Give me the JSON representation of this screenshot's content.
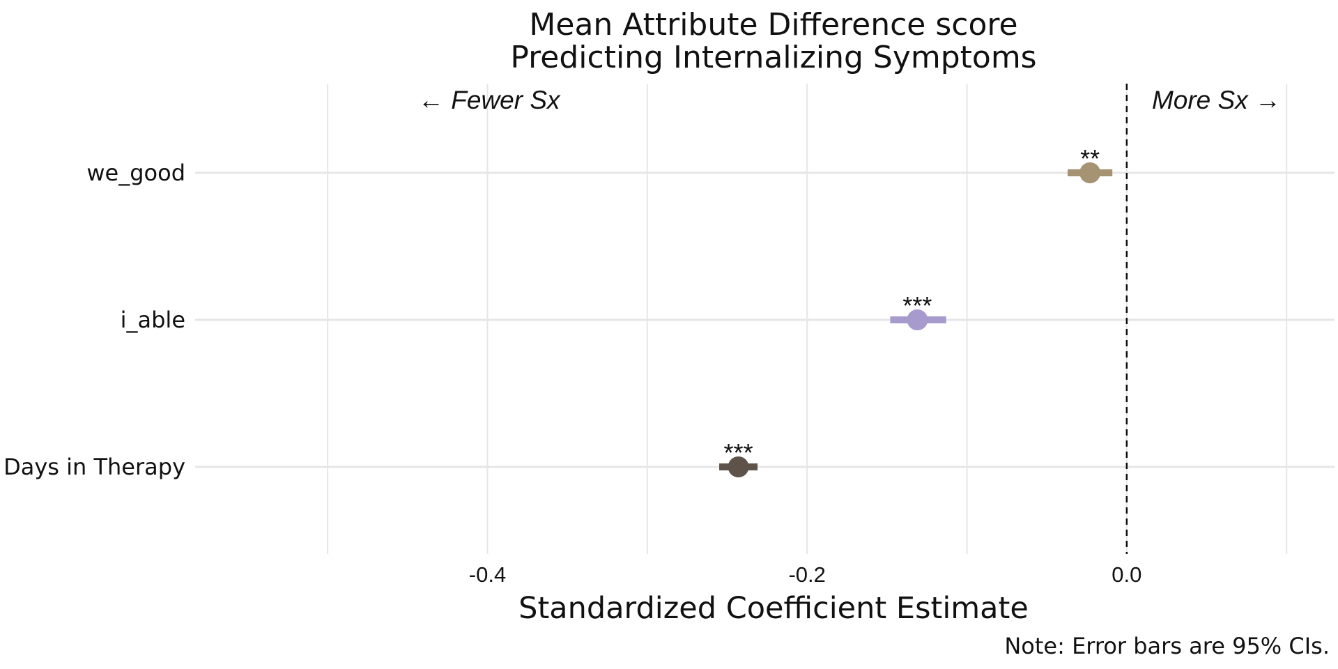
{
  "chart_data": {
    "type": "scatter",
    "title_lines": [
      "Mean Attribute Difference score",
      "Predicting Internalizing Symptoms"
    ],
    "xlabel": "Standardized Coefficient Estimate",
    "ylabel": "",
    "note": "Note: Error bars are 95% CIs.",
    "annotations": {
      "left": "← Fewer Sx",
      "right": "More Sx →"
    },
    "xlim": [
      -0.55,
      0.13
    ],
    "x_ticks": [
      -0.4,
      -0.2,
      0.0
    ],
    "x_tick_labels": [
      "-0.4",
      "-0.2",
      "0.0"
    ],
    "x_minor_gridlines": [
      -0.5,
      -0.3,
      -0.1,
      0.1
    ],
    "reference_line": 0.0,
    "grid": true,
    "categories": [
      "we_good",
      "i_able",
      "Days in Therapy"
    ],
    "series": [
      {
        "category": "we_good",
        "estimate": -0.023,
        "ci_low": -0.037,
        "ci_high": -0.009,
        "significance": "**",
        "color": "#A69372"
      },
      {
        "category": "i_able",
        "estimate": -0.131,
        "ci_low": -0.148,
        "ci_high": -0.113,
        "significance": "***",
        "color": "#A79ACD"
      },
      {
        "category": "Days in Therapy",
        "estimate": -0.243,
        "ci_low": -0.255,
        "ci_high": -0.231,
        "significance": "***",
        "color": "#5E534B"
      }
    ]
  }
}
